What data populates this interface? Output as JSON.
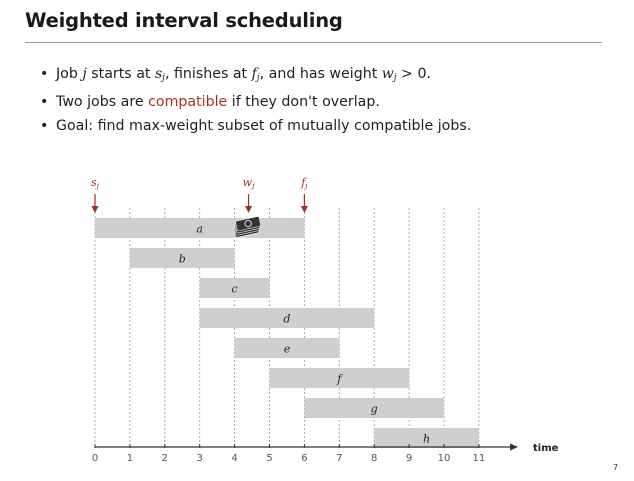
{
  "slide": {
    "title": "Weighted interval scheduling",
    "page_number": "7"
  },
  "bullets": {
    "b1": {
      "t1": "Job ",
      "j": "j",
      "t2": " starts at ",
      "s": "s",
      "s_sub": "j",
      "t3": ", finishes at ",
      "f": "f",
      "f_sub": "j",
      "t4": ", and has weight ",
      "w": "w",
      "w_sub": "j",
      "t5": " > 0."
    },
    "b2": {
      "t1": "Two jobs are ",
      "highlight": "compatible",
      "t2": " if they don't overlap."
    },
    "b3": {
      "text": "Goal:  find max-weight subset of mutually compatible jobs."
    }
  },
  "diagram": {
    "axis_title": "time",
    "ticks": [
      "0",
      "1",
      "2",
      "3",
      "4",
      "5",
      "6",
      "7",
      "8",
      "9",
      "10",
      "11"
    ],
    "markers": [
      {
        "label": "s",
        "sub": "j",
        "at": 0
      },
      {
        "label": "w",
        "sub": "j",
        "at": 4.4
      },
      {
        "label": "f",
        "sub": "j",
        "at": 6
      }
    ],
    "jobs": [
      {
        "name": "a",
        "start": 0,
        "end": 6
      },
      {
        "name": "b",
        "start": 1,
        "end": 4
      },
      {
        "name": "c",
        "start": 3,
        "end": 5
      },
      {
        "name": "d",
        "start": 3,
        "end": 8
      },
      {
        "name": "e",
        "start": 4,
        "end": 7
      },
      {
        "name": "f",
        "start": 5,
        "end": 9
      },
      {
        "name": "g",
        "start": 6,
        "end": 10
      },
      {
        "name": "h",
        "start": 8,
        "end": 11
      }
    ],
    "colors": {
      "bar": "#cfcfcf",
      "marker": "#a03020",
      "axis": "#333333",
      "grid": "#9a9a9a",
      "money": "#333333"
    }
  }
}
